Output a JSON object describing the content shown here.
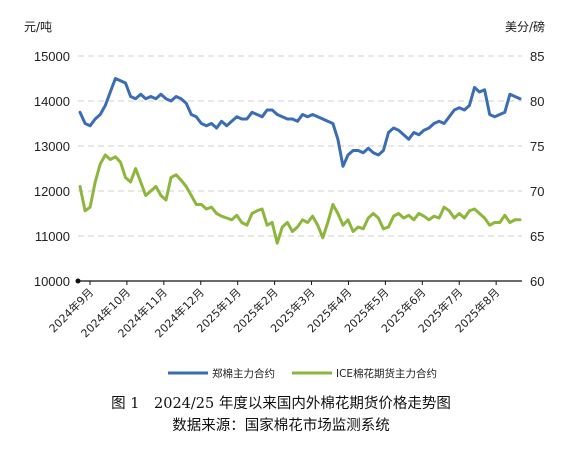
{
  "chart_data": {
    "type": "line",
    "left_unit": "元/吨",
    "right_unit": "美分/磅",
    "left_ticks": [
      "15000",
      "14000",
      "13000",
      "12000",
      "11000",
      "10000"
    ],
    "right_ticks": [
      "85",
      "80",
      "75",
      "70",
      "65",
      "60"
    ],
    "left_ylim": [
      10000,
      15000
    ],
    "right_ylim": [
      60,
      85
    ],
    "grid": true,
    "legend_position": "bottom",
    "x_labels": [
      "2024年9月",
      "2024年10月",
      "2024年11月",
      "2024年12月",
      "2025年1月",
      "2025年2月",
      "2025年3月",
      "2025年4月",
      "2025年5月",
      "2025年6月",
      "2025年7月",
      "2025年8月"
    ],
    "series": [
      {
        "name": "郑棉主力合约",
        "axis": "left",
        "color": "#3a6db3",
        "values": [
          13750,
          13500,
          13450,
          13600,
          13700,
          13900,
          14200,
          14500,
          14450,
          14400,
          14100,
          14050,
          14150,
          14050,
          14100,
          14050,
          14150,
          14050,
          14000,
          14100,
          14050,
          13950,
          13700,
          13650,
          13500,
          13450,
          13500,
          13400,
          13550,
          13450,
          13550,
          13650,
          13600,
          13600,
          13750,
          13700,
          13650,
          13800,
          13800,
          13700,
          13650,
          13600,
          13600,
          13550,
          13700,
          13650,
          13700,
          13650,
          13600,
          13550,
          13500,
          13150,
          12550,
          12800,
          12900,
          12900,
          12850,
          12950,
          12850,
          12800,
          12900,
          13300,
          13400,
          13350,
          13250,
          13150,
          13300,
          13250,
          13350,
          13400,
          13500,
          13550,
          13500,
          13650,
          13800,
          13850,
          13800,
          13900,
          14300,
          14200,
          14250,
          13700,
          13650,
          13700,
          13750,
          14150,
          14100,
          14050
        ]
      },
      {
        "name": "ICE棉花期货主力合约",
        "axis": "right",
        "color": "#8db63c",
        "values": [
          70.5,
          67.8,
          68.2,
          71.0,
          73.0,
          74.0,
          73.5,
          73.8,
          73.2,
          71.5,
          71.0,
          72.5,
          71.0,
          69.5,
          70.0,
          70.5,
          69.5,
          69.0,
          71.5,
          71.8,
          71.2,
          70.5,
          69.5,
          68.5,
          68.5,
          68.0,
          68.2,
          67.5,
          67.2,
          67.0,
          66.8,
          67.3,
          66.5,
          66.2,
          67.5,
          67.8,
          68.0,
          66.2,
          66.5,
          64.2,
          66.0,
          66.5,
          65.5,
          66.0,
          66.8,
          66.5,
          67.2,
          66.2,
          64.8,
          66.5,
          68.5,
          67.5,
          66.2,
          66.8,
          65.5,
          66.0,
          65.8,
          67.0,
          67.5,
          67.0,
          65.8,
          66.0,
          67.2,
          67.5,
          67.0,
          67.3,
          66.8,
          67.5,
          67.2,
          66.8,
          67.2,
          67.0,
          68.2,
          67.8,
          67.0,
          67.5,
          67.0,
          67.8,
          68.0,
          67.5,
          67.0,
          66.2,
          66.5,
          66.5,
          67.3,
          66.5,
          66.8,
          66.8
        ]
      }
    ]
  },
  "caption": {
    "line1": "图 1　2024/25 年度以来国内外棉花期货价格走势图",
    "line2": "数据来源：国家棉花市场监测系统"
  }
}
